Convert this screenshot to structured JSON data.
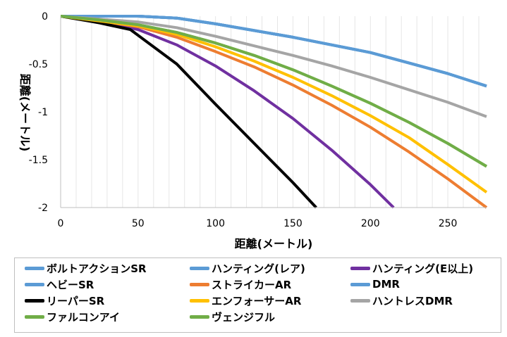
{
  "chart_data": {
    "type": "line",
    "title": "",
    "xlabel": "距離(メートル)",
    "ylabel": "距離(メートル)",
    "xlim": [
      0,
      275
    ],
    "ylim": [
      -2,
      0
    ],
    "xticks": [
      0,
      50,
      100,
      150,
      200,
      250
    ],
    "yticks": [
      0,
      -0.5,
      -1,
      -1.5,
      -2
    ],
    "ytick_labels": [
      "0",
      "-0.5",
      "-1",
      "-1.5",
      "-2"
    ],
    "grid": "vertical minor lines",
    "legend_position": "bottom",
    "series": [
      {
        "name": "ボルトアクションSR",
        "color": "#5b9bd5",
        "x": [
          0,
          25,
          50,
          75,
          100,
          125,
          150,
          175,
          200,
          225,
          250,
          275
        ],
        "y": [
          0,
          0,
          0,
          -0.02,
          -0.08,
          -0.15,
          -0.22,
          -0.3,
          -0.38,
          -0.49,
          -0.6,
          -0.73
        ]
      },
      {
        "name": "ハンティング(レア)",
        "color": "#5b9bd5",
        "x": [
          0,
          25,
          50,
          75,
          100,
          125,
          150,
          175,
          200,
          225,
          250,
          275
        ],
        "y": [
          0,
          0,
          0,
          -0.02,
          -0.08,
          -0.15,
          -0.22,
          -0.3,
          -0.38,
          -0.49,
          -0.6,
          -0.73
        ]
      },
      {
        "name": "ハンティング(E以上)",
        "color": "#7030a0",
        "x": [
          0,
          25,
          50,
          75,
          100,
          125,
          150,
          175,
          200,
          215
        ],
        "y": [
          0,
          -0.06,
          -0.14,
          -0.3,
          -0.52,
          -0.78,
          -1.07,
          -1.4,
          -1.76,
          -2.0
        ]
      },
      {
        "name": "ヘビーSR",
        "color": "#5b9bd5",
        "x": [
          0,
          25,
          50,
          75,
          100,
          125,
          150,
          175,
          200,
          225,
          250,
          275
        ],
        "y": [
          0,
          0,
          0,
          -0.02,
          -0.08,
          -0.15,
          -0.22,
          -0.3,
          -0.38,
          -0.49,
          -0.6,
          -0.73
        ]
      },
      {
        "name": "ストライカーAR",
        "color": "#ed7d31",
        "x": [
          0,
          25,
          50,
          75,
          100,
          125,
          150,
          175,
          200,
          225,
          250,
          275
        ],
        "y": [
          0,
          -0.05,
          -0.11,
          -0.22,
          -0.37,
          -0.53,
          -0.72,
          -0.93,
          -1.16,
          -1.42,
          -1.7,
          -2.0
        ]
      },
      {
        "name": "DMR",
        "color": "#5b9bd5",
        "x": [
          0,
          25,
          50,
          75,
          100,
          125,
          150,
          175,
          200,
          225,
          250,
          275
        ],
        "y": [
          0,
          0,
          0,
          -0.02,
          -0.08,
          -0.15,
          -0.22,
          -0.3,
          -0.38,
          -0.49,
          -0.6,
          -0.73
        ]
      },
      {
        "name": "リーパーSR",
        "color": "#000000",
        "x": [
          0,
          25,
          45,
          50,
          75,
          100,
          125,
          150,
          165
        ],
        "y": [
          0,
          -0.07,
          -0.14,
          -0.2,
          -0.5,
          -0.92,
          -1.33,
          -1.74,
          -2.0
        ]
      },
      {
        "name": "エンフォーサーAR",
        "color": "#ffc000",
        "x": [
          0,
          25,
          50,
          75,
          100,
          125,
          150,
          175,
          200,
          225,
          250,
          275
        ],
        "y": [
          0,
          -0.05,
          -0.1,
          -0.19,
          -0.32,
          -0.47,
          -0.64,
          -0.83,
          -1.04,
          -1.27,
          -1.55,
          -1.84
        ]
      },
      {
        "name": "ハントレスDMR",
        "color": "#a5a5a5",
        "x": [
          0,
          25,
          50,
          75,
          100,
          125,
          150,
          175,
          200,
          225,
          250,
          275
        ],
        "y": [
          0,
          -0.03,
          -0.06,
          -0.12,
          -0.21,
          -0.31,
          -0.41,
          -0.52,
          -0.64,
          -0.77,
          -0.9,
          -1.05
        ]
      },
      {
        "name": "ファルコンアイ",
        "color": "#70ad47",
        "x": [
          0,
          25,
          50,
          75,
          100,
          125,
          150,
          175,
          200,
          225,
          250,
          275
        ],
        "y": [
          0,
          -0.04,
          -0.09,
          -0.17,
          -0.28,
          -0.41,
          -0.56,
          -0.73,
          -0.91,
          -1.11,
          -1.33,
          -1.57
        ]
      },
      {
        "name": "ヴェンジフル",
        "color": "#70ad47",
        "x": [
          0,
          25,
          50,
          75,
          100,
          125,
          150,
          175,
          200,
          225,
          250,
          275
        ],
        "y": [
          0,
          -0.04,
          -0.09,
          -0.17,
          -0.28,
          -0.41,
          -0.56,
          -0.73,
          -0.91,
          -1.11,
          -1.33,
          -1.57
        ]
      }
    ]
  }
}
